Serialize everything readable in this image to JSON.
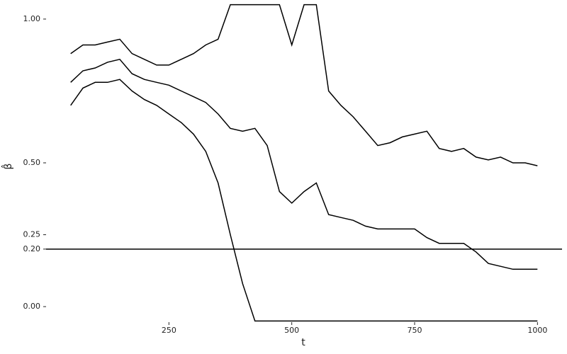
{
  "chart_data": {
    "type": "line",
    "x_label": "t",
    "y_label": "β̂",
    "x": [
      50,
      75,
      100,
      125,
      150,
      175,
      200,
      225,
      250,
      275,
      300,
      325,
      350,
      375,
      400,
      425,
      450,
      475,
      500,
      525,
      550,
      575,
      600,
      625,
      650,
      675,
      700,
      725,
      750,
      775,
      800,
      825,
      850,
      875,
      900,
      925,
      950,
      975,
      1000
    ],
    "series": [
      {
        "color": "#000000",
        "values": [
          0.88,
          0.91,
          0.91,
          0.92,
          0.93,
          0.88,
          0.86,
          0.84,
          0.84,
          0.86,
          0.88,
          0.91,
          0.93,
          1.05,
          1.05,
          1.05,
          1.05,
          1.05,
          0.91,
          1.05,
          1.05,
          0.75,
          0.7,
          0.66,
          0.61,
          0.56,
          0.57,
          0.59,
          0.6,
          0.61,
          0.55,
          0.54,
          0.55,
          0.52,
          0.51,
          0.52,
          0.5,
          0.5,
          0.49
        ]
      },
      {
        "color": "#000000",
        "values": [
          0.78,
          0.82,
          0.83,
          0.85,
          0.86,
          0.81,
          0.79,
          0.78,
          0.77,
          0.75,
          0.73,
          0.71,
          0.67,
          0.62,
          0.61,
          0.62,
          0.56,
          0.4,
          0.36,
          0.4,
          0.43,
          0.32,
          0.31,
          0.3,
          0.28,
          0.27,
          0.27,
          0.27,
          0.27,
          0.24,
          0.22,
          0.22,
          0.22,
          0.19,
          0.15,
          0.14,
          0.13,
          0.13,
          0.13
        ]
      },
      {
        "color": "#000000",
        "values": [
          0.7,
          0.76,
          0.78,
          0.78,
          0.79,
          0.75,
          0.72,
          0.7,
          0.67,
          0.64,
          0.6,
          0.54,
          0.43,
          0.25,
          0.08,
          -0.05,
          -0.05,
          -0.05,
          -0.05,
          -0.05,
          -0.05,
          -0.05,
          -0.05,
          -0.05,
          -0.05,
          -0.05,
          -0.05,
          -0.05,
          -0.05,
          -0.05,
          -0.05,
          -0.05,
          -0.05,
          -0.05,
          -0.05,
          -0.05,
          -0.05,
          -0.05,
          -0.05
        ]
      }
    ],
    "hline": 0.2,
    "xlim": [
      0,
      1050
    ],
    "ylim": [
      -0.054,
      1.054
    ],
    "xticks": [
      250,
      500,
      750,
      1000
    ],
    "yticks": [
      {
        "value": 0,
        "label": "0.00"
      },
      {
        "value": 0.2,
        "label": "0.20"
      },
      {
        "value": 0.25,
        "label": "0.25"
      },
      {
        "value": 0.5,
        "label": "0.50"
      },
      {
        "value": 1,
        "label": "1.00"
      }
    ]
  }
}
